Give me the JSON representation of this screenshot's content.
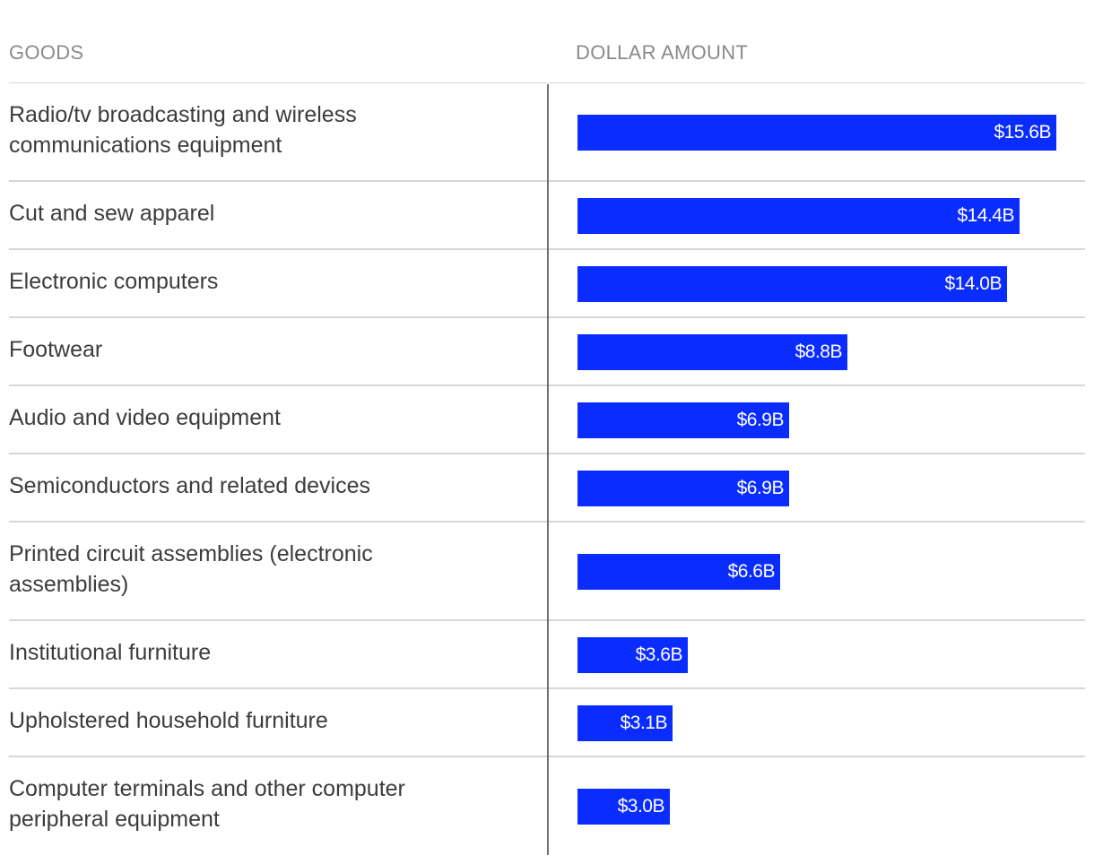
{
  "headers": {
    "goods": "GOODS",
    "amount": "DOLLAR AMOUNT"
  },
  "colors": {
    "bar": "#0a2cff",
    "rule": "#d6d6d6",
    "axis": "#6b7378",
    "text": "#3c3c3c",
    "header": "#8a8a8a"
  },
  "chart_data": {
    "type": "bar",
    "orientation": "horizontal",
    "title": "",
    "xlabel": "DOLLAR AMOUNT",
    "ylabel": "GOODS",
    "unit": "billion USD",
    "categories": [
      "Radio/tv broadcasting and wireless communications equipment",
      "Cut and sew apparel",
      "Electronic computers",
      "Footwear",
      "Audio and video equipment",
      "Semiconductors and related devices",
      "Printed circuit assemblies (electronic assemblies)",
      "Institutional furniture",
      "Upholstered household furniture",
      "Computer terminals and other computer peripheral equipment"
    ],
    "values": [
      15.6,
      14.4,
      14.0,
      8.8,
      6.9,
      6.9,
      6.6,
      3.6,
      3.1,
      3.0
    ],
    "value_labels": [
      "$15.6B",
      "$14.4B",
      "$14.0B",
      "$8.8B",
      "$6.9B",
      "$6.9B",
      "$6.6B",
      "$3.6B",
      "$3.1B",
      "$3.0B"
    ],
    "xlim": [
      0,
      15.6
    ],
    "grid": false,
    "legend": "none"
  }
}
